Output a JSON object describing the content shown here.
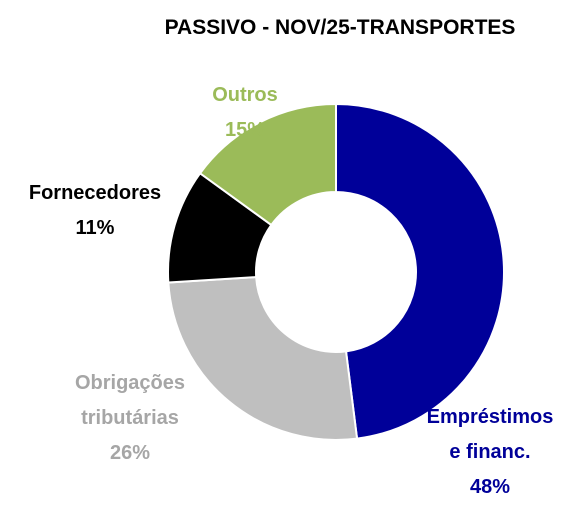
{
  "chart_data": {
    "type": "donut",
    "title": "PASSIVO - NOV/25-TRANSPORTES",
    "categories": [
      "Empréstimos e financ.",
      "Obrigações tributárias",
      "Fornecedores",
      "Outros"
    ],
    "values": [
      48,
      26,
      11,
      15
    ],
    "value_labels": [
      "48%",
      "26%",
      "11%",
      "15%"
    ],
    "colors": [
      "#000099",
      "#bfbfbf",
      "#000000",
      "#9bbb59"
    ],
    "label_colors": [
      "#000099",
      "#a6a6a6",
      "#000000",
      "#9bbb59"
    ]
  }
}
